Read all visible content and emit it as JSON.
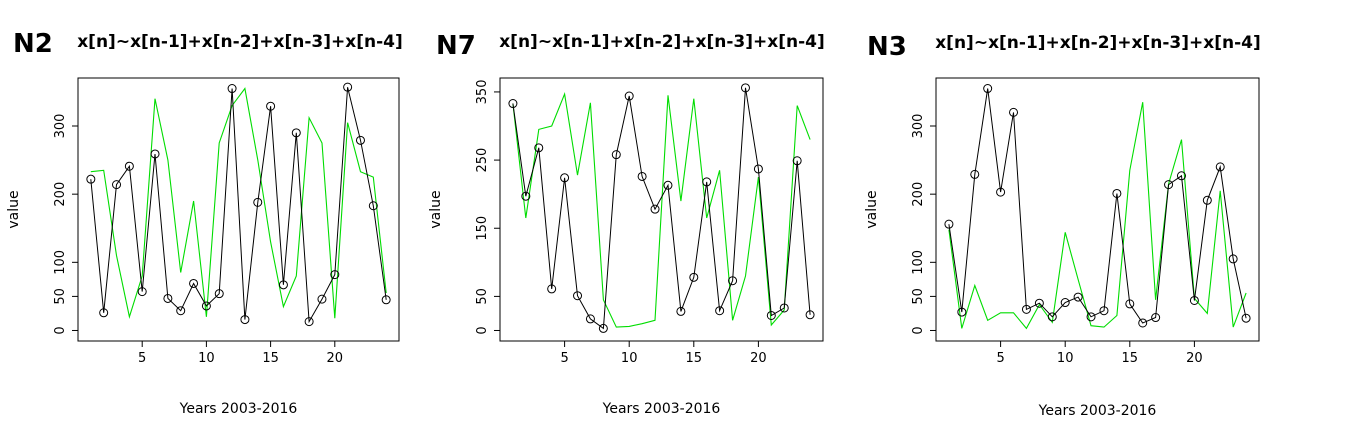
{
  "chart_data": [
    {
      "type": "line",
      "panel_label": "N2",
      "title": "x[n]~x[n-1]+x[n-2]+x[n-3]+x[n-4]",
      "xlabel": "Years 2003-2016",
      "ylabel": "value",
      "xlim": [
        1,
        24
      ],
      "ylim": [
        0,
        355
      ],
      "xticks": [
        5,
        10,
        15,
        20
      ],
      "yticks": [
        0,
        50,
        100,
        200,
        300
      ],
      "x": [
        1,
        2,
        3,
        4,
        5,
        6,
        7,
        8,
        9,
        10,
        11,
        12,
        13,
        14,
        15,
        16,
        17,
        18,
        19,
        20,
        21,
        22,
        23,
        24
      ],
      "series": [
        {
          "name": "",
          "color": "#000000",
          "markers": true,
          "values": [
            222,
            26,
            214,
            241,
            57,
            259,
            47,
            29,
            69,
            36,
            54,
            355,
            16,
            188,
            329,
            67,
            290,
            13,
            46,
            82,
            357,
            279,
            183,
            45
          ]
        },
        {
          "name": "",
          "color": "#00dd00",
          "markers": false,
          "values": [
            233,
            235,
            110,
            20,
            80,
            340,
            250,
            85,
            190,
            20,
            275,
            330,
            355,
            250,
            130,
            35,
            80,
            312,
            275,
            18,
            305,
            233,
            225,
            55
          ]
        }
      ]
    },
    {
      "type": "line",
      "panel_label": "N7",
      "title": "x[n]~x[n-1]+x[n-2]+x[n-3]+x[n-4]",
      "xlabel": "Years 2003-2016",
      "ylabel": "value",
      "xlim": [
        1,
        24
      ],
      "ylim": [
        0,
        355
      ],
      "xticks": [
        5,
        10,
        15,
        20
      ],
      "yticks": [
        0,
        50,
        150,
        250,
        350
      ],
      "x": [
        1,
        2,
        3,
        4,
        5,
        6,
        7,
        8,
        9,
        10,
        11,
        12,
        13,
        14,
        15,
        16,
        17,
        18,
        19,
        20,
        21,
        22,
        23,
        24
      ],
      "series": [
        {
          "name": "",
          "color": "#000000",
          "markers": true,
          "values": [
            333,
            197,
            268,
            61,
            224,
            51,
            17,
            3,
            258,
            344,
            226,
            178,
            213,
            28,
            78,
            218,
            29,
            73,
            356,
            237,
            22,
            33,
            249,
            23
          ]
        },
        {
          "name": "",
          "color": "#00dd00",
          "markers": false,
          "values": [
            333,
            165,
            295,
            300,
            347,
            228,
            334,
            45,
            5,
            6,
            10,
            15,
            345,
            190,
            340,
            165,
            235,
            15,
            80,
            225,
            8,
            30,
            330,
            280
          ]
        }
      ]
    },
    {
      "type": "line",
      "panel_label": "N3",
      "title": "x[n]~x[n-1]+x[n-2]+x[n-3]+x[n-4]",
      "xlabel": "Years 2003-2016",
      "ylabel": "value",
      "xlim": [
        1,
        24
      ],
      "ylim": [
        0,
        355
      ],
      "xticks": [
        5,
        10,
        15,
        20
      ],
      "yticks": [
        0,
        50,
        100,
        200,
        300
      ],
      "x": [
        1,
        2,
        3,
        4,
        5,
        6,
        7,
        8,
        9,
        10,
        11,
        12,
        13,
        14,
        15,
        16,
        17,
        18,
        19,
        20,
        21,
        22,
        23,
        24
      ],
      "series": [
        {
          "name": "",
          "color": "#000000",
          "markers": true,
          "values": [
            156,
            27,
            229,
            355,
            203,
            320,
            31,
            40,
            20,
            41,
            49,
            20,
            29,
            201,
            39,
            11,
            19,
            214,
            227,
            44,
            191,
            240,
            105,
            18
          ]
        },
        {
          "name": "",
          "color": "#00dd00",
          "markers": false,
          "values": [
            148,
            3,
            66,
            15,
            26,
            26,
            3,
            38,
            12,
            144,
            75,
            7,
            5,
            22,
            235,
            335,
            45,
            215,
            280,
            47,
            25,
            205,
            5,
            55
          ]
        }
      ]
    }
  ]
}
